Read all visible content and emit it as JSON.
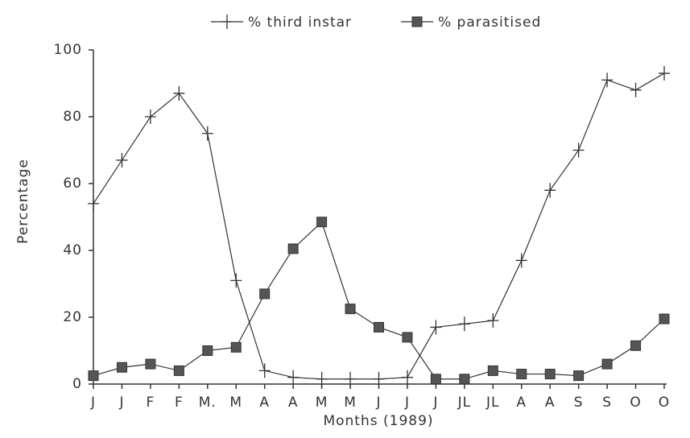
{
  "chart_data": {
    "type": "line",
    "categories": [
      "J",
      "J",
      "F",
      "F",
      "M.",
      "M",
      "A",
      "A",
      "M",
      "M",
      "J",
      "J",
      "J",
      "JL",
      "JL",
      "A",
      "A",
      "S",
      "S",
      "O",
      "O"
    ],
    "series": [
      {
        "name": "% third instar",
        "color": "#333333",
        "marker": "plus",
        "values": [
          54,
          67,
          80,
          87,
          75,
          31,
          4,
          2,
          1.5,
          1.5,
          1.5,
          2,
          17,
          18,
          19,
          37,
          58,
          70,
          91,
          88,
          93
        ]
      },
      {
        "name": "% parasitised",
        "color": "#333333",
        "marker": "square",
        "values": [
          2.5,
          5,
          6,
          4,
          10,
          11,
          27,
          40.5,
          48.5,
          22.5,
          17,
          14,
          1.5,
          1.5,
          4,
          3,
          3,
          2.5,
          6,
          11.5,
          19.5
        ]
      }
    ],
    "ylim": [
      0,
      100
    ],
    "yticks": [
      0,
      20,
      40,
      60,
      80,
      100
    ],
    "ylabel": "Percentage",
    "xlabel": "Months (1989)",
    "legend": "top"
  }
}
